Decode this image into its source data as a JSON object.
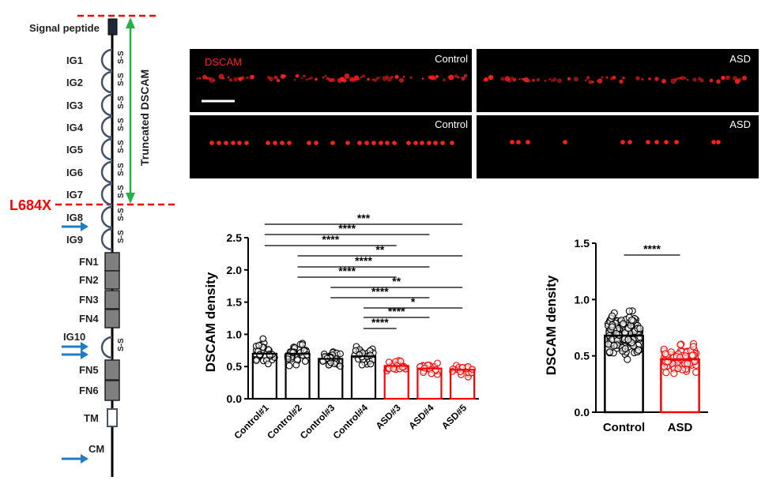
{
  "schematic": {
    "signal_peptide": "Signal peptide",
    "ig_domains": [
      "IG1",
      "IG2",
      "IG3",
      "IG4",
      "IG5",
      "IG6",
      "IG7",
      "IG8",
      "IG9"
    ],
    "fn_domains": [
      "FN1",
      "FN2",
      "FN3",
      "FN4"
    ],
    "ig10": "IG10",
    "fn_domains_2": [
      "FN5",
      "FN6"
    ],
    "tm": "TM",
    "cm": "CM",
    "mutation_label": "L684X",
    "truncated_label": "Truncated DSCAM",
    "disulfide": "S-S",
    "colors": {
      "mutation": "#ff0000",
      "arrow_truncation": "#22b14c",
      "arrows": "#1f7dc8",
      "domain_fill": "#7f7f7f"
    }
  },
  "micrographs": {
    "stain_label": "DSCAM",
    "panels": [
      {
        "label": "Control"
      },
      {
        "label": "ASD"
      },
      {
        "label": "Control"
      },
      {
        "label": "ASD"
      }
    ],
    "colors": {
      "background": "#000000",
      "stain": "#ff2020"
    }
  },
  "chart_data": [
    {
      "type": "bar",
      "ylabel": "DSCAM density",
      "ylim": [
        0,
        2.5
      ],
      "yticks": [
        "0.0",
        "0.5",
        "1.0",
        "1.5",
        "2.0",
        "2.5"
      ],
      "categories": [
        "Control#1",
        "Control#2",
        "Control#3",
        "Control#4",
        "ASD#3",
        "ASD#4",
        "ASD#5"
      ],
      "values": [
        0.7,
        0.7,
        0.62,
        0.66,
        0.51,
        0.47,
        0.45
      ],
      "bar_colors": [
        "#000000",
        "#000000",
        "#000000",
        "#000000",
        "#ff0000",
        "#ff0000",
        "#ff0000"
      ],
      "significance": [
        {
          "from": 0,
          "to": 6,
          "label": "***"
        },
        {
          "from": 0,
          "to": 5,
          "label": "****"
        },
        {
          "from": 0,
          "to": 4,
          "label": "****"
        },
        {
          "from": 1,
          "to": 6,
          "label": "**"
        },
        {
          "from": 1,
          "to": 5,
          "label": "****"
        },
        {
          "from": 1,
          "to": 4,
          "label": "****"
        },
        {
          "from": 2,
          "to": 6,
          "label": "**"
        },
        {
          "from": 2,
          "to": 5,
          "label": "****"
        },
        {
          "from": 3,
          "to": 6,
          "label": "*"
        },
        {
          "from": 3,
          "to": 5,
          "label": "****"
        },
        {
          "from": 3,
          "to": 4,
          "label": "****"
        }
      ]
    },
    {
      "type": "bar",
      "ylabel": "DSCAM density",
      "ylim": [
        0,
        1.5
      ],
      "yticks": [
        "0.0",
        "0.5",
        "1.0",
        "1.5"
      ],
      "categories": [
        "Control",
        "ASD"
      ],
      "values": [
        0.68,
        0.47
      ],
      "bar_colors": [
        "#000000",
        "#ff0000"
      ],
      "significance": [
        {
          "from": 0,
          "to": 1,
          "label": "****"
        }
      ]
    }
  ]
}
